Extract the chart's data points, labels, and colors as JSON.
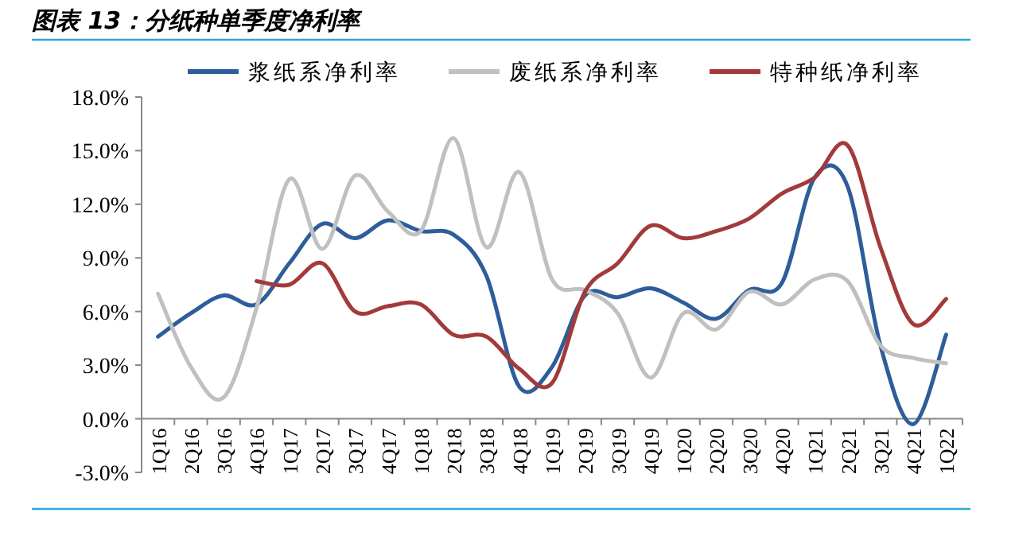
{
  "chart_data": {
    "type": "line",
    "title": "图表 13：分纸种单季度净利率",
    "categories": [
      "1Q16",
      "2Q16",
      "3Q16",
      "4Q16",
      "1Q17",
      "2Q17",
      "3Q17",
      "4Q17",
      "1Q18",
      "2Q18",
      "3Q18",
      "4Q18",
      "1Q19",
      "2Q19",
      "3Q19",
      "4Q19",
      "1Q20",
      "2Q20",
      "3Q20",
      "4Q20",
      "1Q21",
      "2Q21",
      "3Q21",
      "4Q21",
      "1Q22"
    ],
    "series": [
      {
        "name": "浆纸系净利率",
        "color": "#2e5d9a",
        "values": [
          4.6,
          5.9,
          6.9,
          6.4,
          8.7,
          10.9,
          10.1,
          11.1,
          10.5,
          10.3,
          8.0,
          1.8,
          2.9,
          6.9,
          6.8,
          7.3,
          6.5,
          5.6,
          7.2,
          7.6,
          13.5,
          13.0,
          4.1,
          -0.3,
          4.7
        ]
      },
      {
        "name": "废纸系净利率",
        "color": "#c0c0c0",
        "values": [
          7.0,
          2.9,
          1.2,
          6.2,
          13.4,
          9.5,
          13.6,
          11.6,
          10.5,
          15.7,
          9.6,
          13.8,
          7.8,
          7.2,
          5.9,
          2.3,
          5.9,
          5.0,
          7.1,
          6.4,
          7.8,
          7.7,
          4.1,
          3.4,
          3.1
        ]
      },
      {
        "name": "特种纸净利率",
        "color": "#a33a3a",
        "values": [
          null,
          null,
          null,
          7.7,
          7.5,
          8.7,
          6.0,
          6.3,
          6.4,
          4.7,
          4.6,
          2.8,
          2.0,
          7.1,
          8.7,
          10.8,
          10.1,
          10.5,
          11.2,
          12.6,
          13.5,
          15.3,
          9.6,
          5.3,
          6.7
        ]
      }
    ],
    "ylim": [
      -3,
      18
    ],
    "yticks": [
      {
        "value": -3,
        "label": "-3.0%"
      },
      {
        "value": 0,
        "label": "0.0%"
      },
      {
        "value": 3,
        "label": "3.0%"
      },
      {
        "value": 6,
        "label": "6.0%"
      },
      {
        "value": 9,
        "label": "9.0%"
      },
      {
        "value": 12,
        "label": "12.0%"
      },
      {
        "value": 15,
        "label": "15.0%"
      },
      {
        "value": 18,
        "label": "18.0%"
      }
    ],
    "legend": "top",
    "grid": false,
    "marker": "none",
    "line_style": "solid"
  }
}
